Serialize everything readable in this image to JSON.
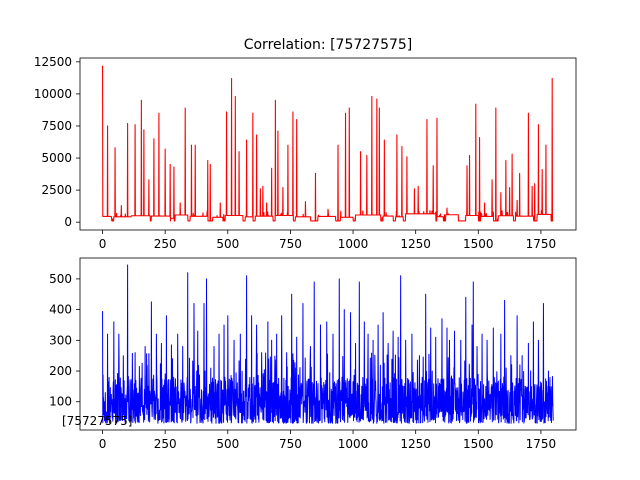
{
  "chart_data": [
    {
      "type": "line",
      "title": "Correlation: [75727575]",
      "xlabel": "",
      "ylabel": "",
      "xlim": [
        -90,
        1890
      ],
      "ylim": [
        -610,
        12800
      ],
      "grid": false,
      "xticks": [
        {
          "value": 0,
          "label": "0"
        },
        {
          "value": 250,
          "label": "250"
        },
        {
          "value": 500,
          "label": "500"
        },
        {
          "value": 750,
          "label": "750"
        },
        {
          "value": 1000,
          "label": "1000"
        },
        {
          "value": 1250,
          "label": "1250"
        },
        {
          "value": 1500,
          "label": "1500"
        },
        {
          "value": 1750,
          "label": "1750"
        }
      ],
      "yticks": [
        {
          "value": 0,
          "label": "0"
        },
        {
          "value": 2500,
          "label": "2500"
        },
        {
          "value": 5000,
          "label": "5000"
        },
        {
          "value": 7500,
          "label": "7500"
        },
        {
          "value": 10000,
          "label": "10000"
        },
        {
          "value": 12500,
          "label": "12500"
        }
      ],
      "series": [
        {
          "color": "#ff0000",
          "baseline": 100,
          "plateaus": [
            [
              0,
              35,
              450
            ],
            [
              45,
              115,
              420
            ],
            [
              115,
              190,
              500
            ],
            [
              195,
              270,
              480
            ],
            [
              272,
              285,
              300
            ],
            [
              290,
              340,
              560
            ],
            [
              350,
              420,
              460
            ],
            [
              440,
              480,
              380
            ],
            [
              490,
              560,
              520
            ],
            [
              570,
              600,
              420
            ],
            [
              610,
              680,
              470
            ],
            [
              690,
              760,
              520
            ],
            [
              770,
              830,
              420
            ],
            [
              860,
              930,
              450
            ],
            [
              950,
              1000,
              380
            ],
            [
              1010,
              1110,
              560
            ],
            [
              1120,
              1160,
              480
            ],
            [
              1170,
              1200,
              420
            ],
            [
              1210,
              1330,
              650
            ],
            [
              1335,
              1360,
              430
            ],
            [
              1370,
              1420,
              580
            ],
            [
              1450,
              1500,
              520
            ],
            [
              1510,
              1560,
              450
            ],
            [
              1580,
              1640,
              500
            ],
            [
              1650,
              1720,
              470
            ],
            [
              1735,
              1790,
              600
            ]
          ],
          "spikes": [
            [
              0,
              12200
            ],
            [
              20,
              7500
            ],
            [
              50,
              5800
            ],
            [
              75,
              1300
            ],
            [
              100,
              7700
            ],
            [
              130,
              7600
            ],
            [
              155,
              9500
            ],
            [
              165,
              7200
            ],
            [
              185,
              3300
            ],
            [
              205,
              6500
            ],
            [
              225,
              8500
            ],
            [
              250,
              5700
            ],
            [
              270,
              4500
            ],
            [
              285,
              4300
            ],
            [
              310,
              1500
            ],
            [
              330,
              8900
            ],
            [
              355,
              6000
            ],
            [
              370,
              6000
            ],
            [
              420,
              4800
            ],
            [
              430,
              4500
            ],
            [
              470,
              1500
            ],
            [
              495,
              8600
            ],
            [
              515,
              11200
            ],
            [
              530,
              9800
            ],
            [
              545,
              5500
            ],
            [
              575,
              6400
            ],
            [
              600,
              8500
            ],
            [
              615,
              6800
            ],
            [
              630,
              2600
            ],
            [
              640,
              2800
            ],
            [
              655,
              1500
            ],
            [
              675,
              4200
            ],
            [
              690,
              9500
            ],
            [
              700,
              7100
            ],
            [
              720,
              2700
            ],
            [
              740,
              6000
            ],
            [
              760,
              8600
            ],
            [
              775,
              8000
            ],
            [
              810,
              1600
            ],
            [
              850,
              3800
            ],
            [
              900,
              1000
            ],
            [
              940,
              6000
            ],
            [
              970,
              8500
            ],
            [
              985,
              8900
            ],
            [
              1030,
              5500
            ],
            [
              1055,
              5200
            ],
            [
              1075,
              9800
            ],
            [
              1095,
              9600
            ],
            [
              1105,
              8900
            ],
            [
              1125,
              6400
            ],
            [
              1175,
              6800
            ],
            [
              1195,
              5900
            ],
            [
              1215,
              5100
            ],
            [
              1245,
              2600
            ],
            [
              1260,
              2800
            ],
            [
              1295,
              8000
            ],
            [
              1320,
              4400
            ],
            [
              1335,
              8100
            ],
            [
              1375,
              1100
            ],
            [
              1455,
              4400
            ],
            [
              1465,
              5200
            ],
            [
              1490,
              9200
            ],
            [
              1505,
              6600
            ],
            [
              1525,
              1500
            ],
            [
              1555,
              3300
            ],
            [
              1570,
              8900
            ],
            [
              1590,
              2300
            ],
            [
              1610,
              4800
            ],
            [
              1625,
              2700
            ],
            [
              1635,
              5300
            ],
            [
              1655,
              1700
            ],
            [
              1665,
              3800
            ],
            [
              1700,
              8500
            ],
            [
              1715,
              2800
            ],
            [
              1725,
              3000
            ],
            [
              1740,
              7600
            ],
            [
              1755,
              4100
            ],
            [
              1770,
              6000
            ],
            [
              1795,
              11200
            ]
          ]
        }
      ]
    },
    {
      "type": "line",
      "title": "",
      "xlabel": "",
      "ylabel": "",
      "xlim": [
        -90,
        1890
      ],
      "ylim": [
        8,
        568
      ],
      "grid": false,
      "annotation": "[75727575]",
      "xticks": [
        {
          "value": 0,
          "label": "0"
        },
        {
          "value": 250,
          "label": "250"
        },
        {
          "value": 500,
          "label": "500"
        },
        {
          "value": 750,
          "label": "750"
        },
        {
          "value": 1000,
          "label": "1000"
        },
        {
          "value": 1250,
          "label": "1250"
        },
        {
          "value": 1500,
          "label": "1500"
        },
        {
          "value": 1750,
          "label": "1750"
        }
      ],
      "yticks": [
        {
          "value": 100,
          "label": "100"
        },
        {
          "value": 200,
          "label": "200"
        },
        {
          "value": 300,
          "label": "300"
        },
        {
          "value": 400,
          "label": "400"
        },
        {
          "value": 500,
          "label": "500"
        }
      ],
      "series": [
        {
          "color": "#0000ff",
          "n_points": 1800,
          "typical_range": [
            30,
            180
          ],
          "spikes": [
            [
              0,
              395
            ],
            [
              20,
              320
            ],
            [
              45,
              360
            ],
            [
              65,
              320
            ],
            [
              100,
              545
            ],
            [
              130,
              260
            ],
            [
              170,
              280
            ],
            [
              195,
              425
            ],
            [
              215,
              320
            ],
            [
              235,
              290
            ],
            [
              255,
              380
            ],
            [
              275,
              285
            ],
            [
              300,
              320
            ],
            [
              320,
              280
            ],
            [
              340,
              520
            ],
            [
              365,
              420
            ],
            [
              380,
              330
            ],
            [
              405,
              420
            ],
            [
              415,
              500
            ],
            [
              445,
              280
            ],
            [
              465,
              320
            ],
            [
              485,
              350
            ],
            [
              500,
              380
            ],
            [
              525,
              300
            ],
            [
              550,
              320
            ],
            [
              575,
              510
            ],
            [
              595,
              380
            ],
            [
              615,
              350
            ],
            [
              635,
              260
            ],
            [
              660,
              360
            ],
            [
              675,
              300
            ],
            [
              695,
              320
            ],
            [
              715,
              380
            ],
            [
              735,
              260
            ],
            [
              755,
              450
            ],
            [
              775,
              310
            ],
            [
              800,
              420
            ],
            [
              830,
              280
            ],
            [
              845,
              490
            ],
            [
              870,
              350
            ],
            [
              895,
              360
            ],
            [
              920,
              320
            ],
            [
              945,
              500
            ],
            [
              965,
              400
            ],
            [
              990,
              390
            ],
            [
              1010,
              290
            ],
            [
              1025,
              490
            ],
            [
              1045,
              360
            ],
            [
              1060,
              320
            ],
            [
              1080,
              300
            ],
            [
              1100,
              350
            ],
            [
              1120,
              390
            ],
            [
              1140,
              290
            ],
            [
              1160,
              330
            ],
            [
              1180,
              310
            ],
            [
              1190,
              510
            ],
            [
              1210,
              300
            ],
            [
              1235,
              320
            ],
            [
              1265,
              250
            ],
            [
              1290,
              450
            ],
            [
              1310,
              340
            ],
            [
              1330,
              310
            ],
            [
              1355,
              370
            ],
            [
              1375,
              340
            ],
            [
              1385,
              300
            ],
            [
              1405,
              330
            ],
            [
              1430,
              300
            ],
            [
              1450,
              440
            ],
            [
              1475,
              350
            ],
            [
              1480,
              490
            ],
            [
              1495,
              280
            ],
            [
              1515,
              320
            ],
            [
              1535,
              300
            ],
            [
              1560,
              340
            ],
            [
              1590,
              320
            ],
            [
              1605,
              430
            ],
            [
              1630,
              250
            ],
            [
              1655,
              380
            ],
            [
              1675,
              250
            ],
            [
              1700,
              290
            ],
            [
              1720,
              360
            ],
            [
              1740,
              300
            ],
            [
              1760,
              420
            ],
            [
              1780,
              200
            ]
          ]
        }
      ]
    }
  ]
}
